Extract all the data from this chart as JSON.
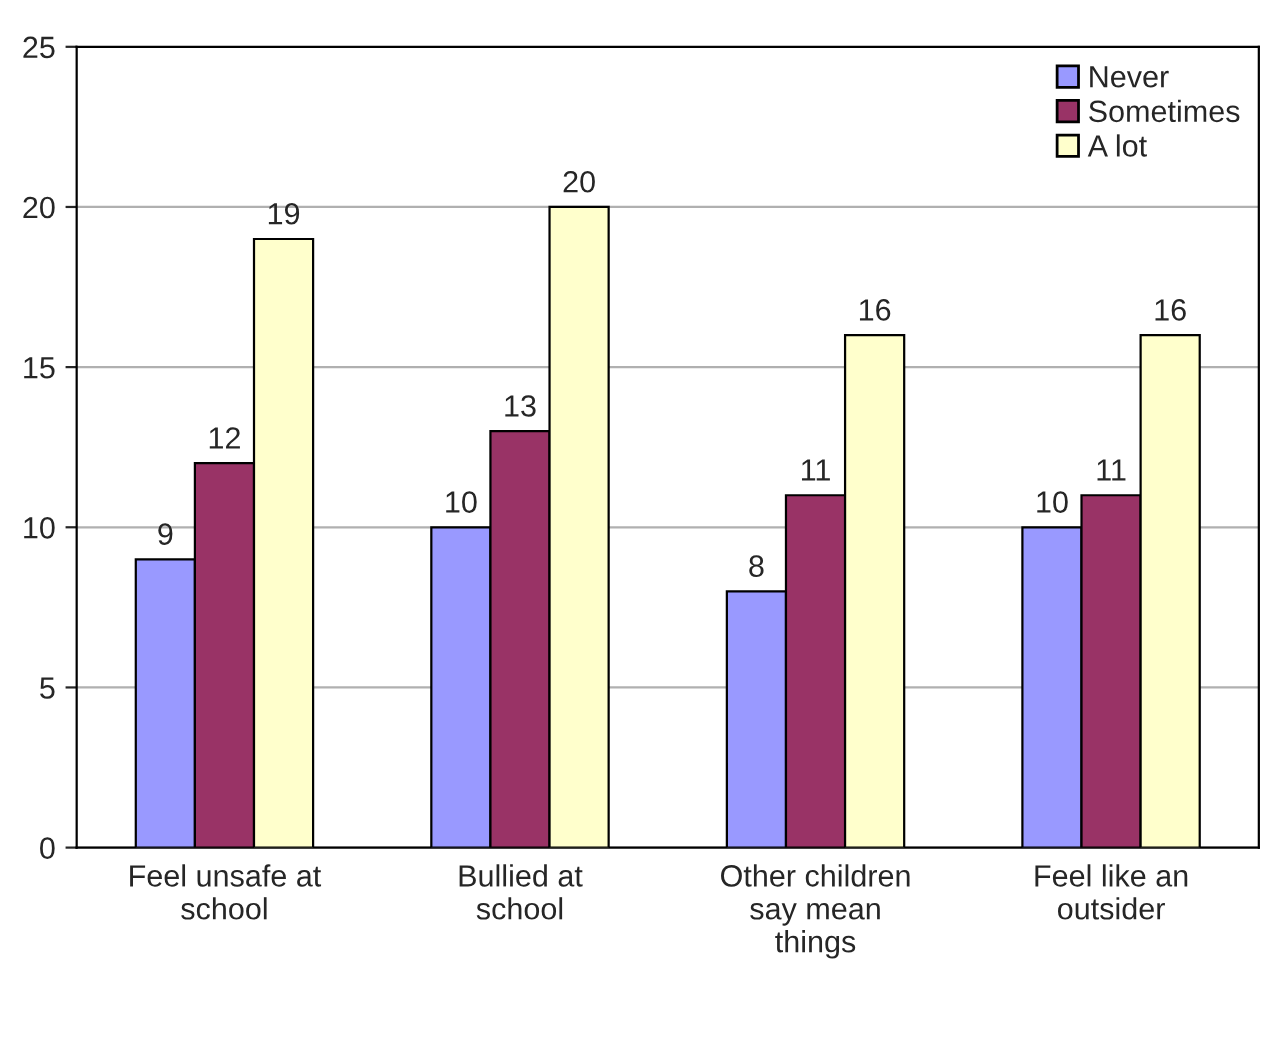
{
  "chart_data": {
    "type": "bar",
    "categories": [
      "Feel unsafe at\nschool",
      "Bullied at\nschool",
      "Other children\nsay mean\nthings",
      "Feel like an\noutsider"
    ],
    "series": [
      {
        "name": "Never",
        "color": "#9999ff",
        "values": [
          9,
          10,
          8,
          10
        ]
      },
      {
        "name": "Sometimes",
        "color": "#993366",
        "values": [
          12,
          13,
          11,
          11
        ]
      },
      {
        "name": "A lot",
        "color": "#ffffcc",
        "values": [
          19,
          20,
          16,
          16
        ]
      }
    ],
    "ylim": [
      0,
      25
    ],
    "yticks": [
      0,
      5,
      10,
      15,
      20,
      25
    ],
    "grid": "y",
    "legend": "top right",
    "data_labels": true
  }
}
